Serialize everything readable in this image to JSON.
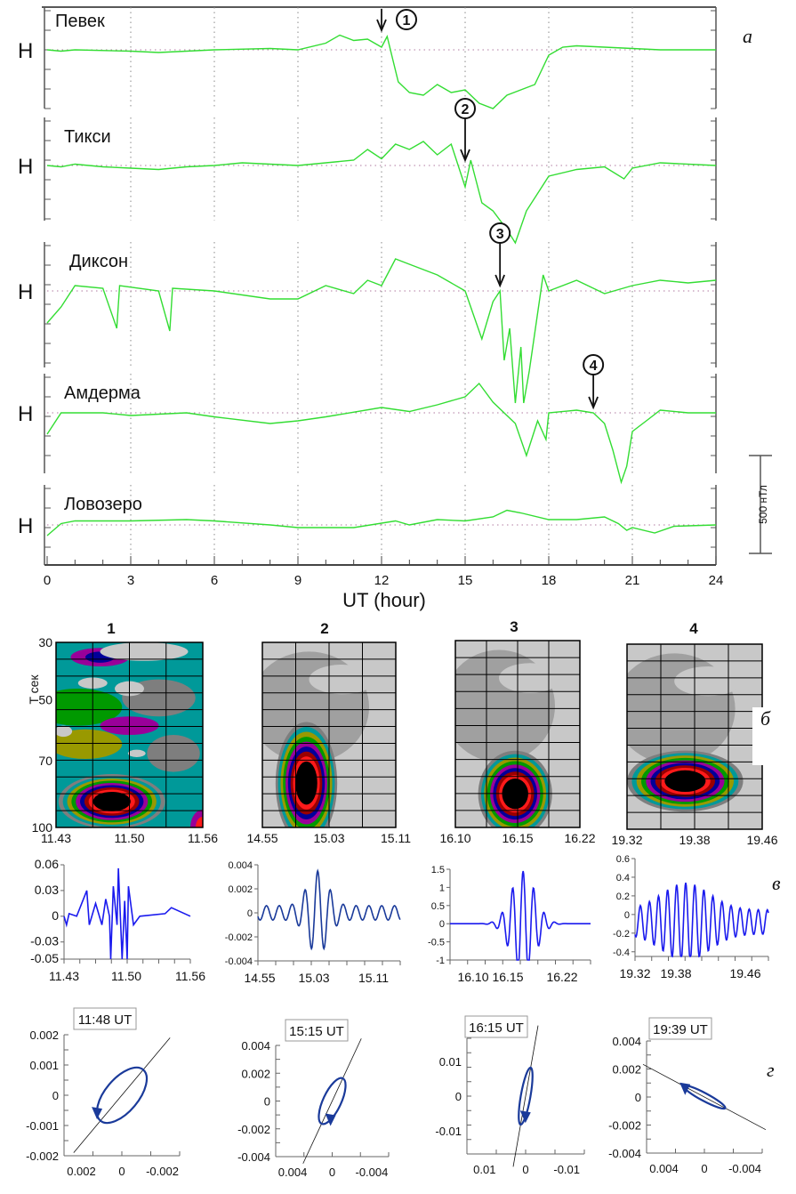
{
  "figure": {
    "panel_labels": {
      "a": "а",
      "b": "б",
      "v": "в",
      "g": "г"
    }
  },
  "chart_data": [
    {
      "id": "magnetograms",
      "type": "line",
      "xlabel": "UT (hour)",
      "xlim": [
        0,
        24
      ],
      "x_ticks": [
        "0",
        "3",
        "6",
        "9",
        "12",
        "15",
        "18",
        "21",
        "24"
      ],
      "channel_label": "H",
      "line_color": "#33dd33",
      "scale_bar_label": "500 нТл",
      "scale_bar_value_nT": 500,
      "grid": "dotted vertical every 3 h",
      "series": [
        {
          "name": "Певек",
          "event": {
            "id": "1",
            "time": 12.0
          },
          "points": [
            [
              0,
              0
            ],
            [
              0.5,
              -5
            ],
            [
              1,
              0
            ],
            [
              3,
              -5
            ],
            [
              4,
              -10
            ],
            [
              5,
              -5
            ],
            [
              6,
              0
            ],
            [
              8,
              5
            ],
            [
              9,
              0
            ],
            [
              10,
              25
            ],
            [
              10.5,
              55
            ],
            [
              11,
              35
            ],
            [
              11.5,
              40
            ],
            [
              12,
              10
            ],
            [
              12.2,
              50
            ],
            [
              12.6,
              -120
            ],
            [
              13,
              -160
            ],
            [
              13.5,
              -170
            ],
            [
              14,
              -130
            ],
            [
              14.5,
              -160
            ],
            [
              15,
              -150
            ],
            [
              15.5,
              -200
            ],
            [
              16,
              -220
            ],
            [
              16.5,
              -170
            ],
            [
              17.5,
              -130
            ],
            [
              18,
              -20
            ],
            [
              18.5,
              10
            ],
            [
              19,
              15
            ],
            [
              21,
              5
            ],
            [
              22,
              0
            ],
            [
              24,
              0
            ]
          ]
        },
        {
          "name": "Тикси",
          "event": {
            "id": "2",
            "time": 15.0
          },
          "points": [
            [
              0,
              0
            ],
            [
              0.5,
              -5
            ],
            [
              1,
              5
            ],
            [
              2,
              -5
            ],
            [
              3,
              -10
            ],
            [
              4,
              -15
            ],
            [
              5,
              -5
            ],
            [
              6,
              0
            ],
            [
              7,
              10
            ],
            [
              9,
              0
            ],
            [
              10,
              10
            ],
            [
              11,
              20
            ],
            [
              11.5,
              60
            ],
            [
              12,
              25
            ],
            [
              12.5,
              80
            ],
            [
              13,
              60
            ],
            [
              13.5,
              90
            ],
            [
              14,
              40
            ],
            [
              14.5,
              80
            ],
            [
              15,
              -80
            ],
            [
              15.2,
              20
            ],
            [
              15.6,
              -140
            ],
            [
              16,
              -170
            ],
            [
              16.5,
              -240
            ],
            [
              16.8,
              -290
            ],
            [
              17.2,
              -170
            ],
            [
              18,
              -40
            ],
            [
              19,
              -15
            ],
            [
              20,
              -5
            ],
            [
              20.7,
              -50
            ],
            [
              21,
              -10
            ],
            [
              22,
              10
            ],
            [
              24,
              0
            ]
          ]
        },
        {
          "name": "Диксон",
          "event": {
            "id": "3",
            "time": 16.25
          },
          "points": [
            [
              0,
              -120
            ],
            [
              0.5,
              -60
            ],
            [
              1,
              20
            ],
            [
              2,
              10
            ],
            [
              2.5,
              -140
            ],
            [
              2.6,
              20
            ],
            [
              4,
              0
            ],
            [
              4.4,
              -150
            ],
            [
              4.5,
              10
            ],
            [
              6,
              0
            ],
            [
              8,
              -30
            ],
            [
              9,
              -30
            ],
            [
              10,
              20
            ],
            [
              11,
              -10
            ],
            [
              11.5,
              40
            ],
            [
              12,
              20
            ],
            [
              12.5,
              120
            ],
            [
              13,
              100
            ],
            [
              14,
              60
            ],
            [
              15,
              0
            ],
            [
              15.6,
              -180
            ],
            [
              16,
              -40
            ],
            [
              16.25,
              0
            ],
            [
              16.4,
              -260
            ],
            [
              16.6,
              -140
            ],
            [
              16.8,
              -420
            ],
            [
              17,
              -210
            ],
            [
              17.1,
              -420
            ],
            [
              17.3,
              -300
            ],
            [
              17.8,
              60
            ],
            [
              18,
              0
            ],
            [
              19,
              40
            ],
            [
              20,
              -10
            ],
            [
              21,
              20
            ],
            [
              22,
              40
            ],
            [
              23,
              30
            ],
            [
              24,
              40
            ]
          ]
        },
        {
          "name": "Амдерма",
          "event": {
            "id": "4",
            "time": 19.6
          },
          "points": [
            [
              0,
              -80
            ],
            [
              0.5,
              0
            ],
            [
              2,
              0
            ],
            [
              3,
              -10
            ],
            [
              5,
              0
            ],
            [
              6,
              -15
            ],
            [
              8,
              -40
            ],
            [
              9,
              -30
            ],
            [
              10,
              -15
            ],
            [
              12,
              20
            ],
            [
              13,
              5
            ],
            [
              14,
              30
            ],
            [
              15,
              60
            ],
            [
              15.5,
              110
            ],
            [
              16,
              40
            ],
            [
              16.8,
              -40
            ],
            [
              17.2,
              -160
            ],
            [
              17.6,
              -30
            ],
            [
              17.9,
              -100
            ],
            [
              18,
              0
            ],
            [
              19,
              10
            ],
            [
              19.6,
              0
            ],
            [
              20,
              -40
            ],
            [
              20.3,
              -140
            ],
            [
              20.6,
              -260
            ],
            [
              20.8,
              -200
            ],
            [
              21,
              -70
            ],
            [
              21.5,
              -30
            ],
            [
              22,
              10
            ],
            [
              23,
              0
            ],
            [
              24,
              0
            ]
          ]
        },
        {
          "name": "Ловозеро",
          "event": null,
          "points": [
            [
              0,
              -40
            ],
            [
              0.5,
              5
            ],
            [
              1,
              15
            ],
            [
              3,
              15
            ],
            [
              5,
              20
            ],
            [
              6,
              15
            ],
            [
              8,
              0
            ],
            [
              9,
              -10
            ],
            [
              11,
              -10
            ],
            [
              12.5,
              15
            ],
            [
              13,
              0
            ],
            [
              14,
              20
            ],
            [
              15,
              15
            ],
            [
              16,
              30
            ],
            [
              16.5,
              55
            ],
            [
              17,
              45
            ],
            [
              18,
              20
            ],
            [
              19,
              20
            ],
            [
              20,
              30
            ],
            [
              20.5,
              5
            ],
            [
              20.8,
              -20
            ],
            [
              21,
              -10
            ],
            [
              21.8,
              -30
            ],
            [
              22.5,
              -5
            ],
            [
              24,
              0
            ]
          ]
        }
      ]
    },
    {
      "id": "wavelet-spectra",
      "type": "heatmap",
      "ylabel": "T сек",
      "y_ticks": [
        "30",
        "50",
        "70",
        "100"
      ],
      "colormap": [
        "#c8c8c8",
        "#a0a0a0",
        "#7e7e7e",
        "#009999",
        "#999900",
        "#009900",
        "#990099",
        "#000099",
        "#990000",
        "#ff1a1a",
        "#000000"
      ],
      "panels": [
        {
          "title": "1",
          "x_ticks": [
            "11.43",
            "11.50",
            "11.56"
          ],
          "peak": {
            "x": 0.38,
            "y": 0.86,
            "rx": 0.22,
            "ry": 0.09
          }
        },
        {
          "title": "2",
          "x_ticks": [
            "14.55",
            "15.03",
            "15.11"
          ],
          "peak": {
            "x": 0.33,
            "y": 0.76,
            "rx": 0.14,
            "ry": 0.2
          }
        },
        {
          "title": "3",
          "x_ticks": [
            "16.10",
            "16.15",
            "16.22"
          ],
          "peak": {
            "x": 0.48,
            "y": 0.82,
            "rx": 0.18,
            "ry": 0.14
          }
        },
        {
          "title": "4",
          "x_ticks": [
            "19.32",
            "19.38",
            "19.46"
          ],
          "peak": {
            "x": 0.43,
            "y": 0.74,
            "rx": 0.26,
            "ry": 0.1
          }
        }
      ]
    },
    {
      "id": "filtered-signals",
      "type": "line",
      "line_color": "#1a1aee",
      "panels": [
        {
          "x_ticks": [
            "11.43",
            "11.50",
            "11.56"
          ],
          "ylim": [
            -0.05,
            0.06
          ],
          "y_ticks": [
            "0.06",
            "0.03",
            "0",
            "-0.03",
            "-0.05"
          ],
          "y_tick_values": [
            0.06,
            0.03,
            0,
            -0.03,
            -0.05
          ],
          "points": [
            [
              0,
              0
            ],
            [
              0.02,
              -0.01
            ],
            [
              0.04,
              0.003
            ],
            [
              0.1,
              0
            ],
            [
              0.18,
              0.03
            ],
            [
              0.2,
              -0.01
            ],
            [
              0.25,
              0.015
            ],
            [
              0.3,
              -0.01
            ],
            [
              0.33,
              0.02
            ],
            [
              0.36,
              0.0
            ],
            [
              0.37,
              -0.05
            ],
            [
              0.39,
              0.035
            ],
            [
              0.42,
              -0.01
            ],
            [
              0.43,
              0.056
            ],
            [
              0.46,
              -0.05
            ],
            [
              0.48,
              0.018
            ],
            [
              0.5,
              -0.05
            ],
            [
              0.51,
              0.035
            ],
            [
              0.55,
              -0.01
            ],
            [
              0.6,
              0
            ],
            [
              0.8,
              0.003
            ],
            [
              0.85,
              0.01
            ],
            [
              1,
              0
            ]
          ]
        },
        {
          "x_ticks": [
            "14.55",
            "15.03",
            "15.11"
          ],
          "ylim": [
            -0.004,
            0.004
          ],
          "y_ticks": [
            "0.004",
            "0.002",
            "0",
            "-0.002",
            "-0.004"
          ],
          "y_tick_values": [
            0.004,
            0.002,
            0,
            -0.002,
            -0.004
          ],
          "points": "osc:0.0006,0.0035,0.42,0.1,0.09"
        },
        {
          "x_ticks": [
            "16.10",
            "16.15",
            "16.22"
          ],
          "ylim": [
            -1,
            1.5
          ],
          "y_ticks": [
            "1.5",
            "1",
            "0.5",
            "0",
            "-0.5",
            "-1"
          ],
          "y_tick_values": [
            1.5,
            1,
            0.5,
            0,
            -0.5,
            -1
          ],
          "points": "osc:0.0,1.45,0.52,0.12,0.075"
        },
        {
          "x_ticks": [
            "19.32",
            "19.38",
            "19.46"
          ],
          "ylim": [
            -0.45,
            0.6
          ],
          "y_ticks": [
            "0.6",
            "0.4",
            "0.2",
            "0",
            "-0.2",
            "-0.4"
          ],
          "y_tick_values": [
            0.6,
            0.4,
            0.2,
            0,
            -0.2,
            -0.4
          ],
          "points": "osc:0.13,0.42,0.38,0.25,0.068"
        }
      ]
    },
    {
      "id": "polarization-hodographs",
      "type": "scatter",
      "line_color": "#1a3a9a",
      "panels": [
        {
          "time_label": "11:48 UT",
          "ylim": [
            -0.002,
            0.002
          ],
          "y_ticks": [
            "0.002",
            "0.001",
            "0",
            "-0.001",
            "-0.002"
          ],
          "x_ticks": [
            "0.002",
            "0",
            "-0.002"
          ],
          "axis_angle_deg": 50,
          "a": 0.0022,
          "b": 0.0011
        },
        {
          "time_label": "15:15 UT",
          "ylim": [
            -0.004,
            0.004
          ],
          "y_ticks": [
            "0.004",
            "0.002",
            "0",
            "-0.002",
            "-0.004"
          ],
          "x_ticks": [
            "0.004",
            "0",
            "-0.004"
          ],
          "axis_angle_deg": 65,
          "a": 0.0036,
          "b": 0.0013
        },
        {
          "time_label": "16:15 UT",
          "ylim": [
            -0.015,
            0.015
          ],
          "y_ticks": [
            "0.01",
            "0",
            "-0.01"
          ],
          "x_ticks": [
            "0.01",
            "0",
            "-0.01"
          ],
          "axis_angle_deg": 80,
          "a": 0.015,
          "b": 0.0025
        },
        {
          "time_label": "19:39 UT",
          "ylim": [
            -0.005,
            0.005
          ],
          "y_ticks": [
            "0.004",
            "0.002",
            "0",
            "-0.002",
            "-0.004"
          ],
          "x_ticks": [
            "0.004",
            "0",
            "-0.004"
          ],
          "axis_angle_deg": -28,
          "a": 0.0042,
          "b": 0.0007
        }
      ]
    }
  ]
}
